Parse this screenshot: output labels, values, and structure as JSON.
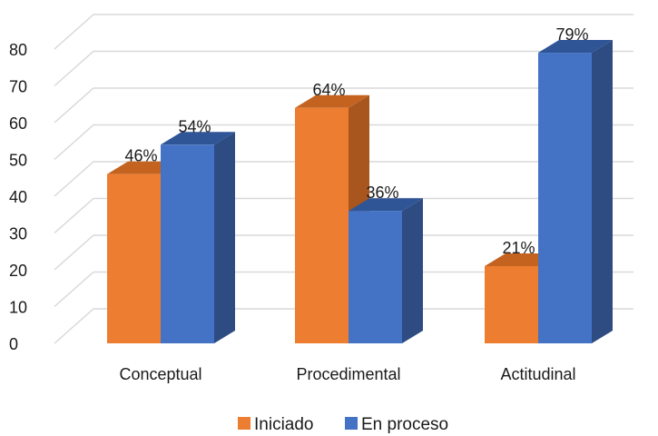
{
  "chart_data": {
    "type": "bar",
    "style": "3d-clustered-column",
    "categories": [
      "Conceptual",
      "Procedimental",
      "Actitudinal"
    ],
    "series": [
      {
        "name": "Iniciado",
        "color": "#ED7D31",
        "side_color": "#A9561E",
        "top_color": "#C4631F",
        "values": [
          46,
          64,
          21
        ],
        "labels": [
          "46%",
          "64%",
          "21%"
        ]
      },
      {
        "name": "En proceso",
        "color": "#4472C4",
        "side_color": "#2E4C82",
        "top_color": "#2F5597",
        "values": [
          54,
          36,
          79
        ],
        "labels": [
          "54%",
          "36%",
          "79%"
        ]
      }
    ],
    "ylim": [
      0,
      80
    ],
    "yticks": [
      0,
      10,
      20,
      30,
      40,
      50,
      60,
      70,
      80
    ],
    "grid": true,
    "legend": "bottom-center"
  }
}
